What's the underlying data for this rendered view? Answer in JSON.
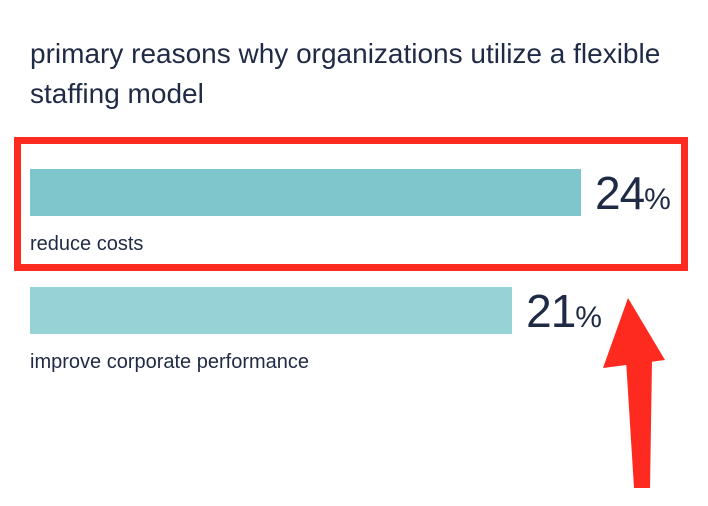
{
  "chart_data": {
    "type": "bar",
    "orientation": "horizontal",
    "title": "primary reasons why organizations utilize a flexible staffing model",
    "categories": [
      "reduce costs",
      "improve corporate performance"
    ],
    "values": [
      24,
      21
    ],
    "value_labels": [
      {
        "number": "24",
        "unit": "%"
      },
      {
        "number": "21",
        "unit": "%"
      }
    ],
    "colors": [
      "#7fc6cc",
      "#96d2d6"
    ]
  },
  "annotations": {
    "highlight_color": "#ff2a1f",
    "highlighted_category": "reduce costs"
  }
}
